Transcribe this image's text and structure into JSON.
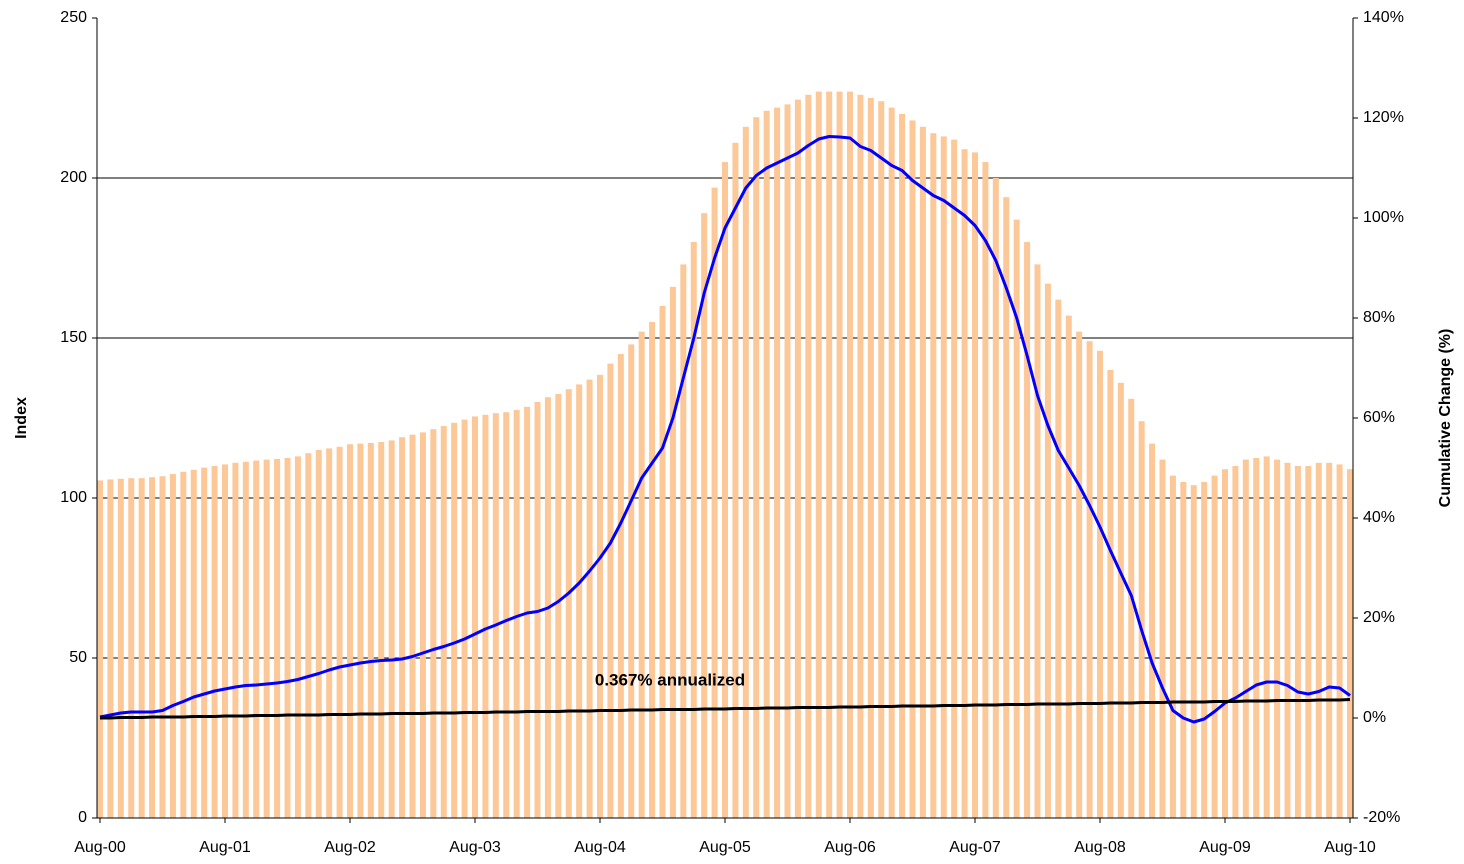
{
  "chart_data": {
    "type": "bar-line",
    "y_label": "Index",
    "y2_label": "Cumulative Change (%)",
    "annotation": "0.367% annualized",
    "categories": [
      "Aug-00",
      null,
      null,
      null,
      null,
      null,
      null,
      null,
      null,
      null,
      null,
      null,
      "Aug-01",
      null,
      null,
      null,
      null,
      null,
      null,
      null,
      null,
      null,
      null,
      null,
      "Aug-02",
      null,
      null,
      null,
      null,
      null,
      null,
      null,
      null,
      null,
      null,
      null,
      "Aug-03",
      null,
      null,
      null,
      null,
      null,
      null,
      null,
      null,
      null,
      null,
      null,
      "Aug-04",
      null,
      null,
      null,
      null,
      null,
      null,
      null,
      null,
      null,
      null,
      null,
      "Aug-05",
      null,
      null,
      null,
      null,
      null,
      null,
      null,
      null,
      null,
      null,
      null,
      "Aug-06",
      null,
      null,
      null,
      null,
      null,
      null,
      null,
      null,
      null,
      null,
      null,
      "Aug-07",
      null,
      null,
      null,
      null,
      null,
      null,
      null,
      null,
      null,
      null,
      null,
      "Aug-08",
      null,
      null,
      null,
      null,
      null,
      null,
      null,
      null,
      null,
      null,
      null,
      "Aug-09",
      null,
      null,
      null,
      null,
      null,
      null,
      null,
      null,
      null,
      null,
      null,
      "Aug-10"
    ],
    "series": [
      {
        "kind": "bar",
        "color": "#fcc898",
        "values": [
          105.5,
          105.8,
          106,
          106.2,
          106.2,
          106.5,
          106.8,
          107.5,
          108.2,
          108.8,
          109.5,
          110,
          110.5,
          111,
          111.3,
          111.7,
          112,
          112.2,
          112.5,
          113,
          114,
          115,
          115.5,
          116,
          116.8,
          117,
          117.2,
          117.5,
          118,
          119,
          119.8,
          120.5,
          121.5,
          122.5,
          123.5,
          124.5,
          125.5,
          126,
          126.5,
          126.8,
          127.5,
          128.5,
          130,
          131.5,
          132.5,
          134,
          135.5,
          137,
          138.5,
          142,
          145,
          148,
          152,
          155,
          160,
          166,
          173,
          180,
          189,
          197,
          205,
          211,
          216,
          219,
          221,
          222,
          223,
          224.5,
          226,
          227,
          227,
          227,
          227,
          226,
          225,
          224,
          222,
          220,
          218,
          216,
          214,
          213,
          212,
          209,
          208,
          205,
          200,
          194,
          187,
          180,
          173,
          167,
          162,
          157,
          152,
          149,
          146,
          140,
          136,
          131,
          124,
          117,
          112,
          107,
          105,
          104,
          105,
          107,
          109,
          110,
          112,
          112.5,
          113,
          112,
          111,
          110,
          110,
          111,
          111,
          110.5,
          109
        ]
      },
      {
        "kind": "line",
        "axis": "y2",
        "color": "#0000ff",
        "values": [
          0.2,
          0.6,
          1.0,
          1.2,
          1.2,
          1.2,
          1.5,
          2.5,
          3.3,
          4.2,
          4.8,
          5.4,
          5.8,
          6.2,
          6.5,
          6.6,
          6.8,
          7.0,
          7.3,
          7.7,
          8.3,
          8.9,
          9.6,
          10.2,
          10.6,
          11.0,
          11.3,
          11.5,
          11.6,
          11.8,
          12.3,
          13.0,
          13.7,
          14.3,
          15.0,
          15.8,
          16.8,
          17.8,
          18.6,
          19.5,
          20.3,
          21.0,
          21.3,
          22.0,
          23.3,
          25.0,
          27.0,
          29.4,
          32.0,
          35.0,
          39.0,
          43.5,
          48.0,
          51.0,
          54,
          60,
          68,
          76,
          85,
          92,
          98,
          102,
          106,
          108.5,
          110,
          111,
          112,
          113,
          114.5,
          115.8,
          116.3,
          116.2,
          116,
          114.3,
          113.5,
          112,
          110.5,
          109.5,
          107.5,
          106,
          104.5,
          103.5,
          102,
          100.5,
          98.5,
          95.5,
          91.5,
          86,
          80,
          72.5,
          64.5,
          58.5,
          53.5,
          50,
          46.5,
          42.5,
          38.2,
          33.5,
          29,
          24.5,
          17.5,
          11,
          6,
          1.5,
          0,
          -0.8,
          -0.2,
          1.3,
          3,
          4,
          5.3,
          6.6,
          7.2,
          7.2,
          6.5,
          5.2,
          4.8,
          5.3,
          6.2,
          6.0,
          4.5
        ]
      },
      {
        "kind": "line",
        "axis": "y2",
        "color": "#000000",
        "values": [
          0.0,
          0.0,
          0.1,
          0.1,
          0.1,
          0.2,
          0.2,
          0.2,
          0.2,
          0.3,
          0.3,
          0.3,
          0.4,
          0.4,
          0.4,
          0.5,
          0.5,
          0.5,
          0.6,
          0.6,
          0.6,
          0.6,
          0.7,
          0.7,
          0.7,
          0.8,
          0.8,
          0.8,
          0.9,
          0.9,
          0.9,
          0.9,
          1.0,
          1.0,
          1.0,
          1.1,
          1.1,
          1.1,
          1.2,
          1.2,
          1.2,
          1.3,
          1.3,
          1.3,
          1.3,
          1.4,
          1.4,
          1.4,
          1.5,
          1.5,
          1.5,
          1.6,
          1.6,
          1.6,
          1.7,
          1.7,
          1.7,
          1.7,
          1.8,
          1.8,
          1.8,
          1.9,
          1.9,
          1.9,
          2.0,
          2.0,
          2.0,
          2.1,
          2.1,
          2.1,
          2.1,
          2.2,
          2.2,
          2.2,
          2.3,
          2.3,
          2.3,
          2.4,
          2.4,
          2.4,
          2.4,
          2.5,
          2.5,
          2.5,
          2.6,
          2.6,
          2.6,
          2.7,
          2.7,
          2.7,
          2.8,
          2.8,
          2.8,
          2.8,
          2.9,
          2.9,
          2.9,
          3.0,
          3.0,
          3.0,
          3.1,
          3.1,
          3.1,
          3.2,
          3.2,
          3.2,
          3.2,
          3.3,
          3.3,
          3.3,
          3.4,
          3.4,
          3.4,
          3.5,
          3.5,
          3.5,
          3.5,
          3.6,
          3.6,
          3.6,
          3.7
        ]
      }
    ],
    "ylim": [
      0,
      250
    ],
    "yticks": [
      0,
      50,
      100,
      150,
      200,
      250
    ],
    "y2lim": [
      -20,
      140
    ],
    "y2ticks": [
      {
        "value": -20,
        "label": "-20%"
      },
      {
        "value": 0,
        "label": "0%"
      },
      {
        "value": 20,
        "label": "20%"
      },
      {
        "value": 40,
        "label": "40%"
      },
      {
        "value": 60,
        "label": "60%"
      },
      {
        "value": 80,
        "label": "80%"
      },
      {
        "value": 100,
        "label": "100%"
      },
      {
        "value": 120,
        "label": "120%"
      },
      {
        "value": 140,
        "label": "140%"
      }
    ],
    "grid": true
  }
}
